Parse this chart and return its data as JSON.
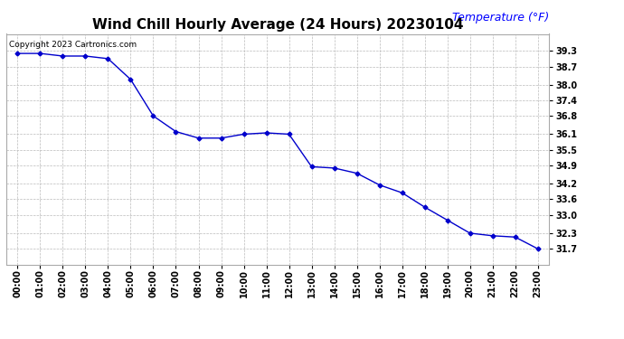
{
  "title": "Wind Chill Hourly Average (24 Hours) 20230104",
  "ylabel": "Temperature (°F)",
  "copyright_text": "Copyright 2023 Cartronics.com",
  "hours": [
    "00:00",
    "01:00",
    "02:00",
    "03:00",
    "04:00",
    "05:00",
    "06:00",
    "07:00",
    "08:00",
    "09:00",
    "10:00",
    "11:00",
    "12:00",
    "13:00",
    "14:00",
    "15:00",
    "16:00",
    "17:00",
    "18:00",
    "19:00",
    "20:00",
    "21:00",
    "22:00",
    "23:00"
  ],
  "values": [
    39.2,
    39.2,
    39.1,
    39.1,
    39.0,
    38.2,
    36.8,
    36.2,
    35.95,
    35.95,
    36.1,
    36.15,
    36.1,
    34.85,
    34.8,
    34.6,
    34.15,
    33.85,
    33.3,
    32.8,
    32.3,
    32.2,
    32.15,
    31.7
  ],
  "line_color": "#0000cc",
  "marker": "D",
  "marker_size": 2.5,
  "ylim_min": 31.1,
  "ylim_max": 39.95,
  "yticks": [
    39.3,
    38.7,
    38.0,
    37.4,
    36.8,
    36.1,
    35.5,
    34.9,
    34.2,
    33.6,
    33.0,
    32.3,
    31.7
  ],
  "background_color": "#ffffff",
  "grid_color": "#bbbbbb",
  "title_fontsize": 11,
  "ylabel_color": "#0000ff",
  "ylabel_fontsize": 9,
  "tick_fontsize": 7,
  "copyright_fontsize": 6.5
}
